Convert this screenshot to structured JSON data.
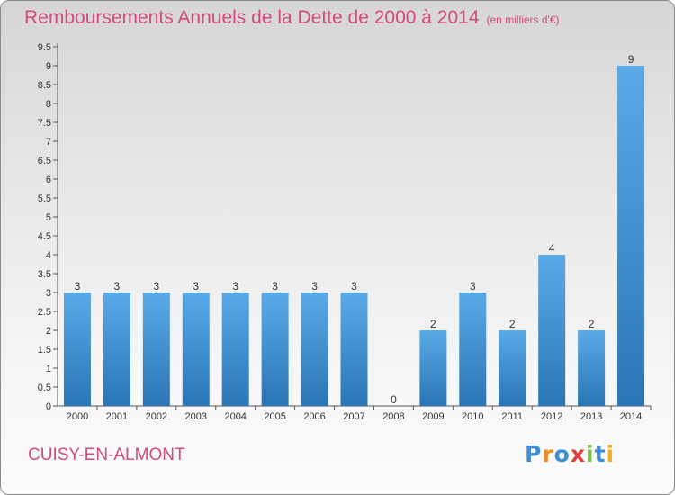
{
  "title": "Remboursements Annuels de la Dette de 2000 à 2014",
  "subtitle": "(en milliers d'€)",
  "commune": "CUISY-EN-ALMONT",
  "logo": {
    "letters": [
      "P",
      "r",
      "o",
      "x",
      "i",
      "t",
      "i"
    ],
    "colors": [
      "#3f8fd6",
      "#f28c1e",
      "#3f8fd6",
      "#e23b3b",
      "#7cc242",
      "#3f8fd6",
      "#f2b01e"
    ]
  },
  "colors": {
    "title": "#d24a7e",
    "bar_light": "#5aaae8",
    "bar_dark": "#2a75b5"
  },
  "chart_data": {
    "type": "bar",
    "title": "Remboursements Annuels de la Dette de 2000 à 2014",
    "subtitle": "(en milliers d'€)",
    "categories": [
      "2000",
      "2001",
      "2002",
      "2003",
      "2004",
      "2005",
      "2006",
      "2007",
      "2008",
      "2009",
      "2010",
      "2011",
      "2012",
      "2013",
      "2014"
    ],
    "values": [
      3,
      3,
      3,
      3,
      3,
      3,
      3,
      3,
      0,
      2,
      3,
      2,
      4,
      2,
      9
    ],
    "data_labels": [
      "3",
      "3",
      "3",
      "3",
      "3",
      "3",
      "3",
      "3",
      "0",
      "2",
      "3",
      "2",
      "4",
      "2",
      "9"
    ],
    "y_ticks": [
      "0",
      "0.5",
      "1",
      "1.5",
      "2",
      "2.5",
      "3",
      "3.5",
      "4",
      "4.5",
      "5",
      "5.5",
      "6",
      "6.5",
      "7",
      "7.5",
      "8",
      "8.5",
      "9",
      "9.5"
    ],
    "ylim": [
      0,
      9.5
    ],
    "grid": false,
    "xlabel": "",
    "ylabel": ""
  }
}
